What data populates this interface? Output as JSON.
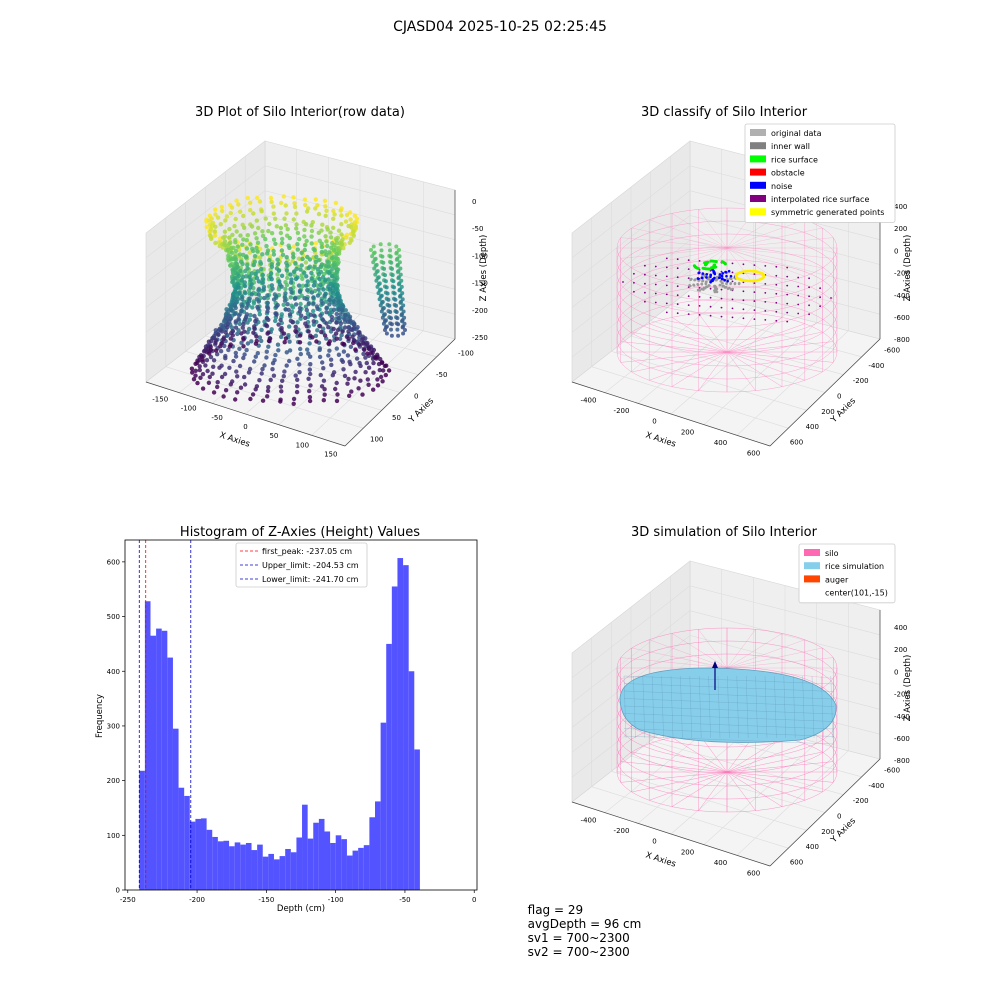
{
  "figure": {
    "suptitle": "CJASD04 2025-10-25 02:25:45"
  },
  "status": {
    "flag": "flag = 29",
    "avg_depth": "avgDepth = 96 cm",
    "sv1": "sv1 = 700~2300",
    "sv2": "sv2 = 700~2300"
  },
  "colors": {
    "histogram_bar": "#4a4aff",
    "first_peak_line": "#ff0000",
    "limit_lines": "#0000cc",
    "silo_wire": "#ff69b4"
  },
  "chart_data": [
    {
      "type": "scatter",
      "title": "3D Plot of Silo Interior(row data)",
      "xlabel": "X Axies",
      "ylabel": "Y Axies",
      "zlabel": "Z Axies (Depth)",
      "x_ticks": [
        "-150",
        "-100",
        "-50",
        "0",
        "50",
        "100",
        "150"
      ],
      "y_ticks": [
        "-100",
        "-50",
        "0",
        "50",
        "100"
      ],
      "z_ticks": [
        "0",
        "-50",
        "-100",
        "-150",
        "-200",
        "-250"
      ],
      "colormap": "viridis"
    },
    {
      "type": "scatter",
      "title": "3D classify of Silo Interior",
      "xlabel": "X Axies",
      "ylabel": "Y Axies",
      "zlabel": "Z Axies (Depth)",
      "x_ticks": [
        "-400",
        "-200",
        "0",
        "200",
        "400",
        "600"
      ],
      "y_ticks": [
        "-600",
        "-400",
        "-200",
        "0",
        "200",
        "400",
        "600"
      ],
      "z_ticks": [
        "400",
        "200",
        "0",
        "-200",
        "-400",
        "-600",
        "-800"
      ],
      "legend_position": "top-right",
      "legend": [
        {
          "label": "original data",
          "color": "#b0b0b0"
        },
        {
          "label": "inner wall",
          "color": "#808080"
        },
        {
          "label": "rice surface",
          "color": "#00ff00"
        },
        {
          "label": "obstacle",
          "color": "#ff0000"
        },
        {
          "label": "noise",
          "color": "#0000ff"
        },
        {
          "label": "interpolated rice surface",
          "color": "#800080"
        },
        {
          "label": "symmetric generated points",
          "color": "#ffff00"
        }
      ]
    },
    {
      "type": "bar",
      "title": "Histogram of Z-Axies (Height) Values",
      "xlabel": "Depth (cm)",
      "ylabel": "Frequency",
      "xlim": [
        -252,
        2
      ],
      "ylim": [
        0,
        640
      ],
      "x_ticks": [
        -250,
        -200,
        -150,
        -100,
        -50,
        0
      ],
      "y_ticks": [
        0,
        100,
        200,
        300,
        400,
        500,
        600
      ],
      "bin_start": -241.7,
      "bin_width": 4.05,
      "values": [
        218,
        528,
        465,
        478,
        474,
        425,
        295,
        187,
        172,
        125,
        130,
        131,
        110,
        97,
        89,
        90,
        80,
        87,
        83,
        86,
        73,
        83,
        61,
        66,
        56,
        62,
        75,
        69,
        96,
        156,
        94,
        123,
        130,
        107,
        86,
        100,
        93,
        63,
        72,
        77,
        82,
        133,
        162,
        306,
        450,
        555,
        607,
        594,
        400,
        257
      ],
      "vlines": [
        {
          "label": "first_peak: -237.05 cm",
          "x": -237.05,
          "color": "#ff0000"
        },
        {
          "label": "Upper_limit: -204.53 cm",
          "x": -204.53,
          "color": "#0000cc"
        },
        {
          "label": "Lower_limit: -241.70 cm",
          "x": -241.7,
          "color": "#0000cc"
        }
      ],
      "legend_position": "top-center"
    },
    {
      "type": "scatter",
      "title": "3D simulation of Silo Interior",
      "xlabel": "X Axies",
      "ylabel": "Y Axies",
      "zlabel": "Z Axies (Depth)",
      "x_ticks": [
        "-400",
        "-200",
        "0",
        "200",
        "400",
        "600"
      ],
      "y_ticks": [
        "-600",
        "-400",
        "-200",
        "0",
        "200",
        "400",
        "600"
      ],
      "z_ticks": [
        "400",
        "200",
        "0",
        "-200",
        "-400",
        "-600",
        "-800"
      ],
      "legend_position": "top-right",
      "legend": [
        {
          "label": "silo",
          "color": "#ff69b4"
        },
        {
          "label": "rice simulation",
          "color": "#87ceeb"
        },
        {
          "label": "auger",
          "color": "#ff4500"
        },
        {
          "label": "center(101,-15)",
          "color": ""
        }
      ]
    }
  ]
}
